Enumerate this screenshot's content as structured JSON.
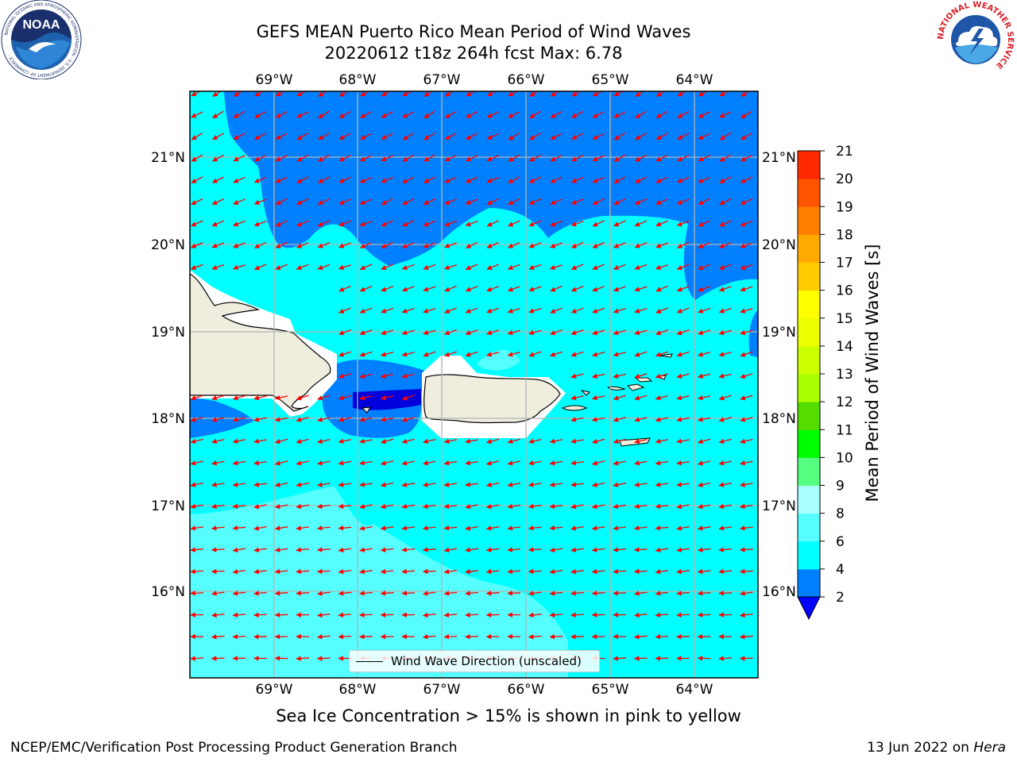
{
  "title": {
    "line1": "GEFS MEAN Puerto Rico Mean Period of Wind Waves",
    "line2": "20220612 t18z 264h fcst   Max: 6.78"
  },
  "map": {
    "lon_ticks": [
      "69°W",
      "68°W",
      "67°W",
      "66°W",
      "65°W",
      "64°W"
    ],
    "lat_ticks": [
      "21°N",
      "20°N",
      "19°N",
      "18°N",
      "17°N",
      "16°N"
    ],
    "legend_label": "Wind Wave Direction (unscaled)",
    "colors": {
      "land": "#eeedde",
      "mask": "#ffffff",
      "band_2_4": "#0080ff",
      "band_4_6": "#00ffff",
      "band_6_8": "#55ffff",
      "band_lt2": "#0000dd",
      "arrow": "#ff0000",
      "grid": "#b4b4b4"
    }
  },
  "colorbar": {
    "label": "Mean Period of Wind Waves [s]",
    "ticks": [
      "2",
      "4",
      "6",
      "8",
      "9",
      "10",
      "11",
      "12",
      "13",
      "14",
      "15",
      "16",
      "17",
      "18",
      "19",
      "20",
      "21"
    ],
    "colors": [
      "#0080ff",
      "#00ffff",
      "#55ffff",
      "#aaffff",
      "#55ff80",
      "#00ff00",
      "#55dd00",
      "#aaff00",
      "#ccff00",
      "#eeff00",
      "#ffff00",
      "#ffcc00",
      "#ffaa00",
      "#ff8000",
      "#ff5500",
      "#ff2a00",
      "#ff0000"
    ],
    "under_color": "#0000ff"
  },
  "notes": {
    "ice": "Sea Ice Concentration > 15% is shown in pink to yellow"
  },
  "footer": {
    "left": "NCEP/EMC/Verification Post Processing Product Generation Branch",
    "right_prefix": "13 Jun 2022 on ",
    "right_host": "Hera"
  },
  "logos": {
    "noaa_text": "NOAA",
    "noaa_ring": "NATIONAL OCEANIC AND ATMOSPHERIC ADMINISTRATION · U.S. DEPARTMENT OF COMMERCE ·",
    "nws_ring": "NATIONAL WEATHER SERVICE"
  }
}
